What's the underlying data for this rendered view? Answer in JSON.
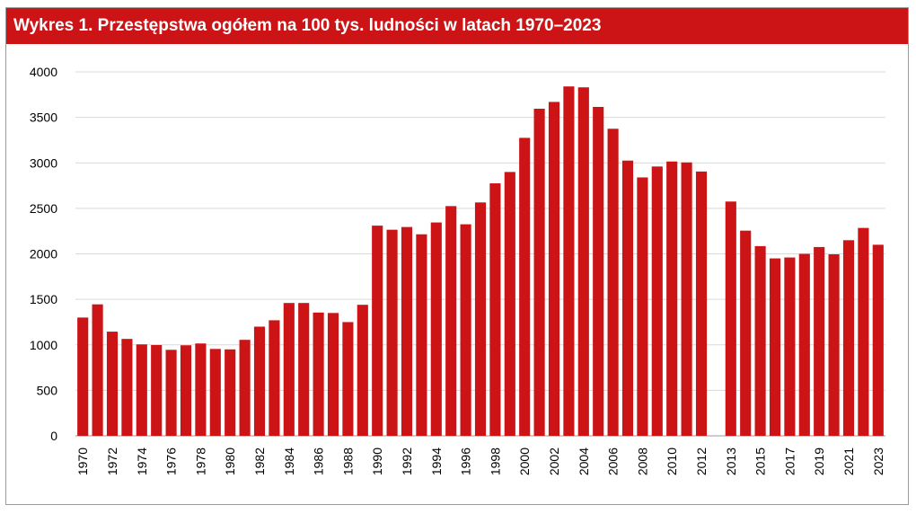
{
  "chart_data": {
    "type": "bar",
    "title": "Wykres 1. Przestępstwa ogółem na 100 tys. ludności w latach 1970–2023",
    "xlabel": "",
    "ylabel": "",
    "ylim": [
      0,
      4000
    ],
    "yticks": [
      0,
      500,
      1000,
      1500,
      2000,
      2500,
      3000,
      3500,
      4000
    ],
    "grid": true,
    "legend": "none",
    "bar_color": "#cc1417",
    "categories": [
      "1970",
      "1971",
      "1972",
      "1973",
      "1974",
      "1975",
      "1976",
      "1977",
      "1978",
      "1979",
      "1980",
      "1981",
      "1982",
      "1983",
      "1984",
      "1985",
      "1986",
      "1987",
      "1988",
      "1989",
      "1990",
      "1991",
      "1992",
      "1993",
      "1994",
      "1995",
      "1996",
      "1997",
      "1998",
      "1999",
      "2000",
      "2001",
      "2002",
      "2003",
      "2004",
      "2005",
      "2006",
      "2007",
      "2008",
      "2009",
      "2010",
      "2011",
      "2012",
      "",
      "2013",
      "2014",
      "2015",
      "2016",
      "2017",
      "2018",
      "2019",
      "2020",
      "2021",
      "2022",
      "2023"
    ],
    "tick_labels": [
      "1970",
      "",
      "1972",
      "",
      "1974",
      "",
      "1976",
      "",
      "1978",
      "",
      "1980",
      "",
      "1982",
      "",
      "1984",
      "",
      "1986",
      "",
      "1988",
      "",
      "1990",
      "",
      "1992",
      "",
      "1994",
      "",
      "1996",
      "",
      "1998",
      "",
      "2000",
      "",
      "2002",
      "",
      "2004",
      "",
      "2006",
      "",
      "2008",
      "",
      "2010",
      "",
      "2012",
      "",
      "2013",
      "",
      "2015",
      "",
      "2017",
      "",
      "2019",
      "",
      "2021",
      "",
      "2023"
    ],
    "values": [
      1300,
      1445,
      1145,
      1065,
      1005,
      998,
      945,
      995,
      1015,
      955,
      950,
      1055,
      1200,
      1270,
      1460,
      1460,
      1355,
      1350,
      1250,
      1440,
      2310,
      2265,
      2295,
      2215,
      2345,
      2525,
      2325,
      2565,
      2775,
      2900,
      3275,
      3595,
      3670,
      3840,
      3830,
      3615,
      3375,
      3025,
      2840,
      2960,
      3015,
      3005,
      2905,
      null,
      2575,
      2255,
      2085,
      1950,
      1960,
      2000,
      2075,
      1995,
      2150,
      2285,
      2100
    ]
  }
}
